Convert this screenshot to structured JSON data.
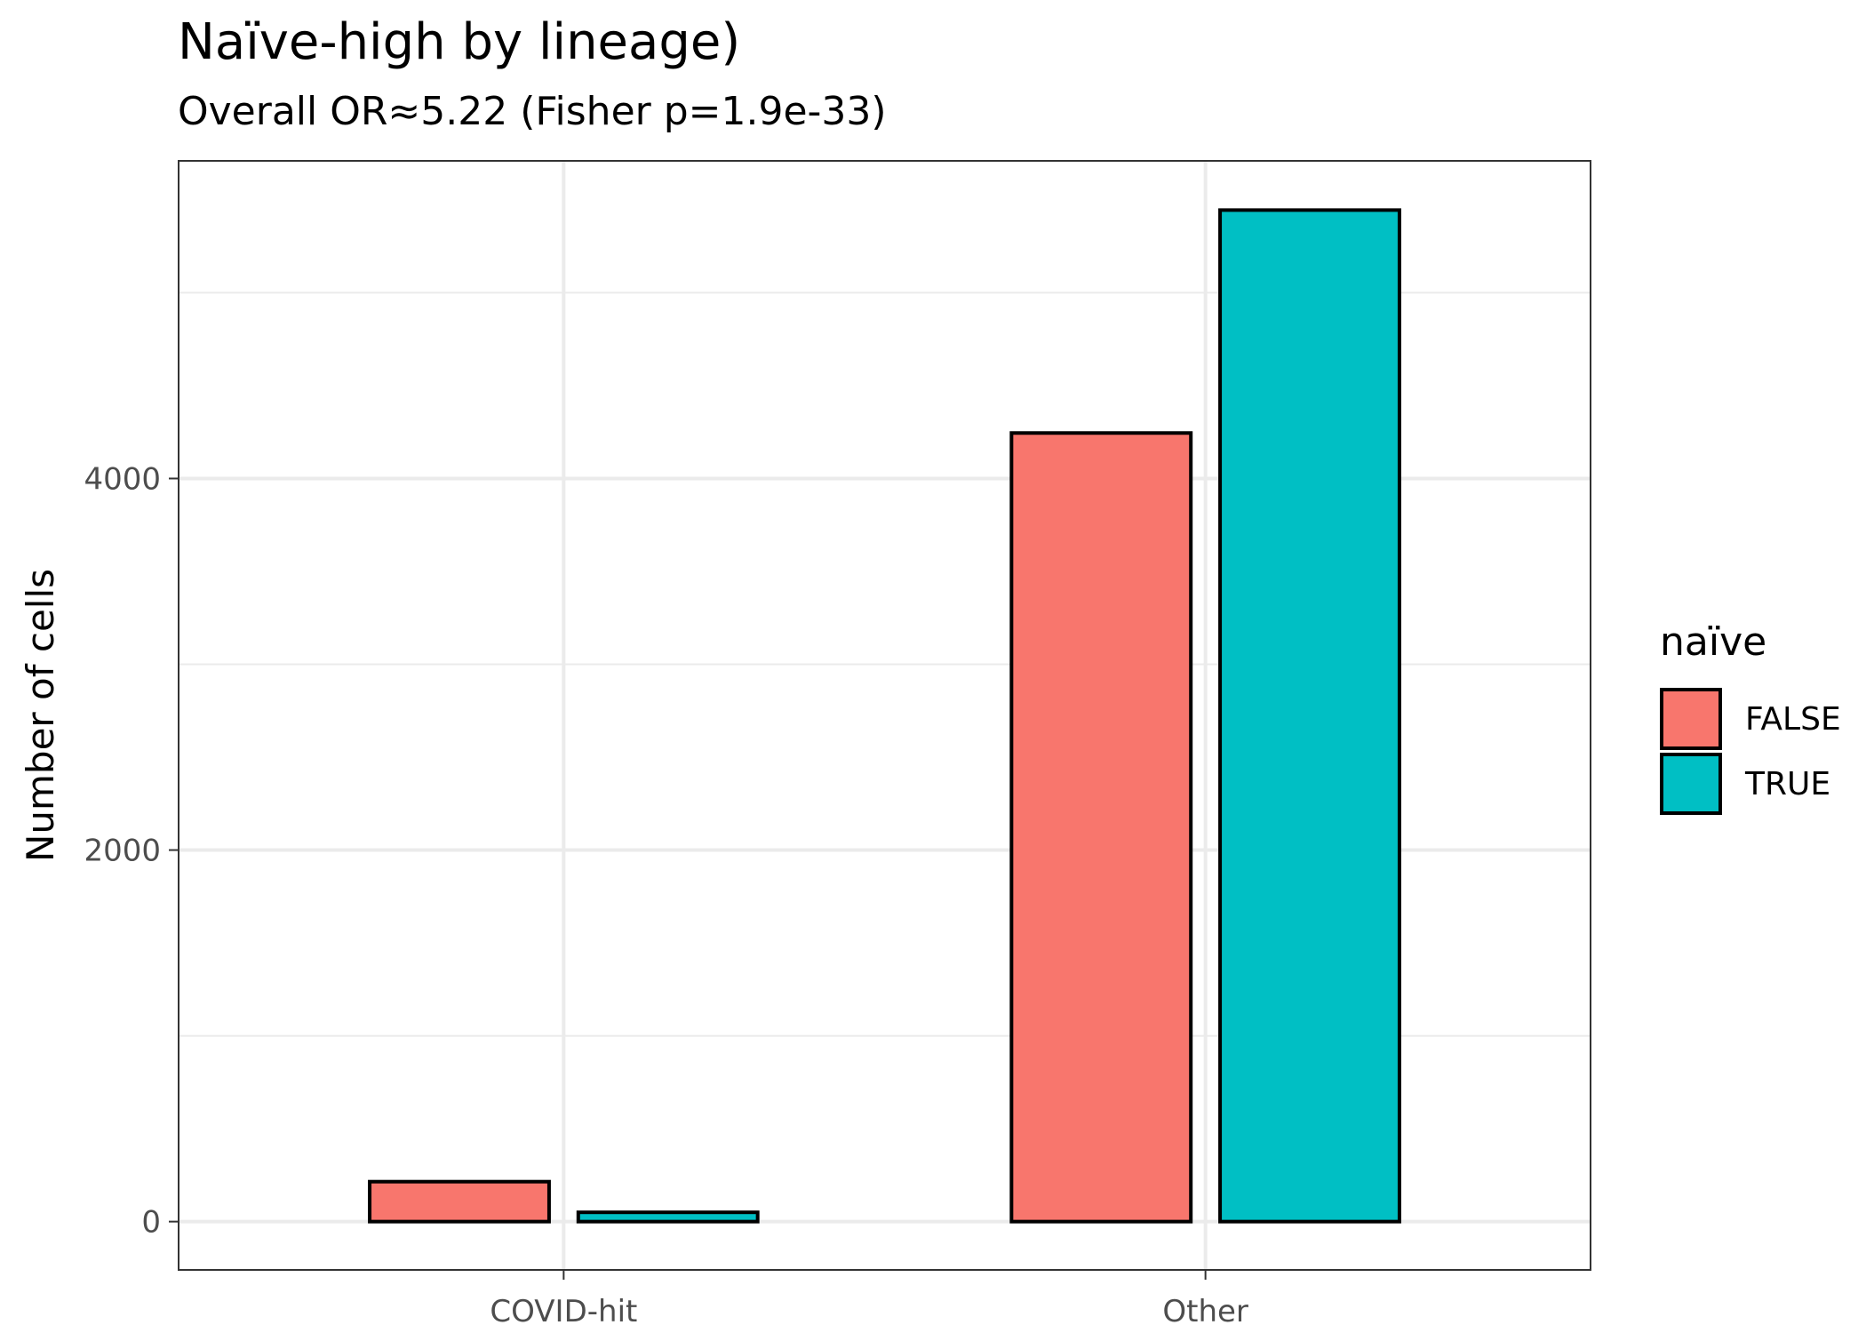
{
  "chart_data": {
    "type": "bar",
    "title": "Naïve-high by lineage)",
    "subtitle": "Overall OR≈5.22 (Fisher p=1.9e-33)",
    "xlabel": "",
    "ylabel": "Number of cells",
    "categories": [
      "COVID-hit",
      "Other"
    ],
    "series": [
      {
        "name": "FALSE",
        "color": "#F8766D",
        "values": [
          215,
          4245
        ]
      },
      {
        "name": "TRUE",
        "color": "#00BFC4",
        "values": [
          50,
          5445
        ]
      }
    ],
    "ylim": [
      -260,
      5710
    ],
    "y_ticks": [
      0,
      2000,
      4000
    ],
    "y_minor_ticks": [
      1000,
      3000,
      5000
    ],
    "grid": true,
    "legend": {
      "title": "naïve",
      "position": "right",
      "entries": [
        "FALSE",
        "TRUE"
      ]
    },
    "colors": {
      "panel_border": "#333333",
      "grid": "#ebebeb",
      "bar_outline": "#000000"
    }
  }
}
